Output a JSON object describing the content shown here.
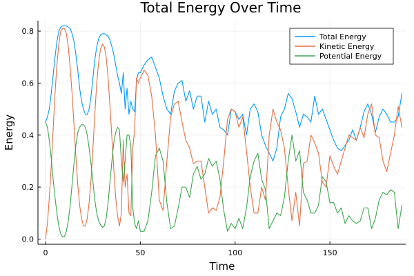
{
  "chart_data": {
    "type": "line",
    "title": "Total Energy Over Time",
    "xlabel": "Time",
    "ylabel": "Energy",
    "xlim": [
      -4,
      190
    ],
    "ylim": [
      -0.02,
      0.84
    ],
    "xticks": [
      0,
      50,
      100,
      150
    ],
    "yticks": [
      0.0,
      0.2,
      0.4,
      0.6,
      0.8
    ],
    "xtick_labels": [
      "0",
      "50",
      "100",
      "150"
    ],
    "ytick_labels": [
      "0.0",
      "0.2",
      "0.4",
      "0.6",
      "0.8"
    ],
    "grid": true,
    "legend_position": "top-right",
    "series": [
      {
        "name": "Total Energy",
        "color": "#009AFA",
        "x": [
          0,
          1,
          2,
          3,
          4,
          5,
          6,
          7,
          8,
          9,
          10,
          11,
          12,
          13,
          14,
          15,
          16,
          17,
          18,
          19,
          20,
          21,
          22,
          23,
          24,
          25,
          26,
          27,
          28,
          29,
          30,
          31,
          32,
          33,
          34,
          35,
          36,
          37,
          38,
          39,
          40,
          41,
          42,
          43,
          44,
          45,
          46,
          47,
          48,
          49,
          50,
          52,
          54,
          56,
          58,
          60,
          62,
          64,
          66,
          68,
          70,
          72,
          74,
          76,
          78,
          80,
          82,
          84,
          86,
          88,
          90,
          92,
          94,
          96,
          98,
          100,
          102,
          104,
          106,
          108,
          110,
          112,
          114,
          116,
          118,
          120,
          122,
          124,
          126,
          128,
          130,
          132,
          134,
          136,
          138,
          140,
          142,
          144,
          146,
          148,
          150,
          152,
          154,
          156,
          158,
          160,
          162,
          164,
          166,
          168,
          170,
          172,
          174,
          176,
          178,
          180,
          182,
          184,
          186,
          188
        ],
        "y": [
          0.45,
          0.47,
          0.5,
          0.56,
          0.63,
          0.7,
          0.76,
          0.8,
          0.815,
          0.82,
          0.82,
          0.82,
          0.815,
          0.81,
          0.79,
          0.76,
          0.71,
          0.65,
          0.58,
          0.53,
          0.5,
          0.48,
          0.48,
          0.5,
          0.55,
          0.62,
          0.69,
          0.74,
          0.77,
          0.785,
          0.79,
          0.79,
          0.785,
          0.78,
          0.765,
          0.74,
          0.71,
          0.67,
          0.63,
          0.6,
          0.56,
          0.64,
          0.5,
          0.58,
          0.48,
          0.53,
          0.5,
          0.49,
          0.61,
          0.64,
          0.64,
          0.67,
          0.69,
          0.7,
          0.66,
          0.62,
          0.55,
          0.5,
          0.48,
          0.57,
          0.6,
          0.61,
          0.53,
          0.57,
          0.5,
          0.55,
          0.55,
          0.45,
          0.53,
          0.48,
          0.5,
          0.43,
          0.42,
          0.4,
          0.5,
          0.49,
          0.46,
          0.48,
          0.4,
          0.5,
          0.52,
          0.49,
          0.4,
          0.36,
          0.33,
          0.3,
          0.35,
          0.47,
          0.5,
          0.56,
          0.54,
          0.49,
          0.43,
          0.48,
          0.47,
          0.45,
          0.55,
          0.48,
          0.5,
          0.46,
          0.42,
          0.38,
          0.35,
          0.34,
          0.36,
          0.38,
          0.42,
          0.38,
          0.43,
          0.49,
          0.52,
          0.48,
          0.41,
          0.47,
          0.5,
          0.48,
          0.45,
          0.45,
          0.47,
          0.56
        ]
      },
      {
        "name": "Kinetic Energy",
        "color": "#E26F46",
        "x": [
          0,
          1,
          2,
          3,
          4,
          5,
          6,
          7,
          8,
          9,
          10,
          11,
          12,
          13,
          14,
          15,
          16,
          17,
          18,
          19,
          20,
          21,
          22,
          23,
          24,
          25,
          26,
          27,
          28,
          29,
          30,
          31,
          32,
          33,
          34,
          35,
          36,
          37,
          38,
          39,
          40,
          41,
          42,
          43,
          44,
          45,
          46,
          47,
          48,
          49,
          50,
          52,
          54,
          56,
          58,
          60,
          62,
          64,
          66,
          68,
          70,
          72,
          74,
          76,
          78,
          80,
          82,
          84,
          86,
          88,
          90,
          92,
          94,
          96,
          98,
          100,
          102,
          104,
          106,
          108,
          110,
          112,
          114,
          116,
          118,
          120,
          122,
          124,
          126,
          128,
          130,
          132,
          134,
          136,
          138,
          140,
          142,
          144,
          146,
          148,
          150,
          152,
          154,
          156,
          158,
          160,
          162,
          164,
          166,
          168,
          170,
          172,
          174,
          176,
          178,
          180,
          182,
          184,
          186,
          188
        ],
        "y": [
          0.0,
          0.06,
          0.16,
          0.28,
          0.42,
          0.56,
          0.67,
          0.75,
          0.8,
          0.81,
          0.81,
          0.79,
          0.74,
          0.66,
          0.56,
          0.44,
          0.32,
          0.21,
          0.13,
          0.08,
          0.05,
          0.05,
          0.08,
          0.14,
          0.23,
          0.35,
          0.48,
          0.6,
          0.68,
          0.73,
          0.75,
          0.74,
          0.7,
          0.62,
          0.51,
          0.39,
          0.27,
          0.16,
          0.09,
          0.05,
          0.1,
          0.38,
          0.2,
          0.25,
          0.1,
          0.09,
          0.35,
          0.42,
          0.62,
          0.6,
          0.62,
          0.65,
          0.63,
          0.55,
          0.4,
          0.15,
          0.11,
          0.3,
          0.47,
          0.52,
          0.53,
          0.45,
          0.38,
          0.35,
          0.29,
          0.3,
          0.3,
          0.2,
          0.1,
          0.12,
          0.11,
          0.16,
          0.3,
          0.46,
          0.5,
          0.49,
          0.43,
          0.47,
          0.34,
          0.2,
          0.1,
          0.1,
          0.2,
          0.15,
          0.4,
          0.5,
          0.45,
          0.42,
          0.35,
          0.2,
          0.07,
          0.18,
          0.05,
          0.29,
          0.3,
          0.4,
          0.37,
          0.33,
          0.22,
          0.2,
          0.32,
          0.28,
          0.25,
          0.3,
          0.35,
          0.4,
          0.39,
          0.38,
          0.43,
          0.39,
          0.48,
          0.52,
          0.4,
          0.39,
          0.3,
          0.26,
          0.33,
          0.4,
          0.51,
          0.43
        ]
      },
      {
        "name": "Potential Energy",
        "color": "#3EA44E",
        "x": [
          0,
          1,
          2,
          3,
          4,
          5,
          6,
          7,
          8,
          9,
          10,
          11,
          12,
          13,
          14,
          15,
          16,
          17,
          18,
          19,
          20,
          21,
          22,
          23,
          24,
          25,
          26,
          27,
          28,
          29,
          30,
          31,
          32,
          33,
          34,
          35,
          36,
          37,
          38,
          39,
          40,
          41,
          42,
          43,
          44,
          45,
          46,
          47,
          48,
          49,
          50,
          52,
          54,
          56,
          58,
          60,
          62,
          64,
          66,
          68,
          70,
          72,
          74,
          76,
          78,
          80,
          82,
          84,
          86,
          88,
          90,
          92,
          94,
          96,
          98,
          100,
          102,
          104,
          106,
          108,
          110,
          112,
          114,
          116,
          118,
          120,
          122,
          124,
          126,
          128,
          130,
          132,
          134,
          136,
          138,
          140,
          142,
          144,
          146,
          148,
          150,
          152,
          154,
          156,
          158,
          160,
          162,
          164,
          166,
          168,
          170,
          172,
          174,
          176,
          178,
          180,
          182,
          184,
          186,
          188
        ],
        "y": [
          0.45,
          0.43,
          0.38,
          0.31,
          0.23,
          0.16,
          0.1,
          0.05,
          0.02,
          0.008,
          0.01,
          0.03,
          0.07,
          0.13,
          0.21,
          0.29,
          0.36,
          0.41,
          0.43,
          0.44,
          0.44,
          0.43,
          0.4,
          0.35,
          0.29,
          0.22,
          0.15,
          0.1,
          0.07,
          0.055,
          0.045,
          0.05,
          0.08,
          0.14,
          0.22,
          0.3,
          0.37,
          0.41,
          0.43,
          0.42,
          0.3,
          0.22,
          0.3,
          0.4,
          0.4,
          0.36,
          0.12,
          0.06,
          0.04,
          0.07,
          0.03,
          0.03,
          0.07,
          0.18,
          0.32,
          0.35,
          0.3,
          0.14,
          0.04,
          0.05,
          0.12,
          0.2,
          0.2,
          0.16,
          0.25,
          0.28,
          0.23,
          0.25,
          0.31,
          0.28,
          0.3,
          0.23,
          0.11,
          0.03,
          0.06,
          0.04,
          0.08,
          0.04,
          0.12,
          0.24,
          0.3,
          0.33,
          0.23,
          0.19,
          0.04,
          0.07,
          0.1,
          0.09,
          0.16,
          0.3,
          0.4,
          0.3,
          0.34,
          0.18,
          0.15,
          0.1,
          0.1,
          0.13,
          0.24,
          0.22,
          0.14,
          0.14,
          0.1,
          0.12,
          0.06,
          0.09,
          0.07,
          0.06,
          0.07,
          0.12,
          0.12,
          0.04,
          0.08,
          0.15,
          0.18,
          0.17,
          0.19,
          0.18,
          0.04,
          0.13
        ]
      }
    ]
  }
}
